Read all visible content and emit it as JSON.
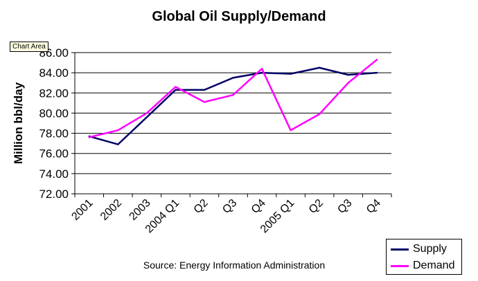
{
  "chart_data": {
    "type": "line",
    "title": "Global Oil Supply/Demand",
    "ylabel": "Million bbl/day",
    "xlabel": "",
    "categories": [
      "2001",
      "2002",
      "2003",
      "2004 Q1",
      "Q2",
      "Q3",
      "Q4",
      "2005 Q1",
      "Q2",
      "Q3",
      "Q4"
    ],
    "ylim": [
      72,
      86
    ],
    "ytick_step": 2,
    "ytick_labels": [
      "72.00",
      "74.00",
      "76.00",
      "78.00",
      "80.00",
      "82.00",
      "84.00",
      "86.00"
    ],
    "grid": true,
    "legend_position": "bottom-right",
    "series": [
      {
        "name": "Supply",
        "color": "#000066",
        "values": [
          77.7,
          76.9,
          79.6,
          82.3,
          82.3,
          83.5,
          84.0,
          83.9,
          84.5,
          83.8,
          84.0
        ]
      },
      {
        "name": "Demand",
        "color": "#ff00ff",
        "values": [
          77.6,
          78.3,
          80.0,
          82.6,
          81.1,
          81.8,
          84.4,
          78.3,
          79.9,
          83.0,
          85.3
        ]
      }
    ],
    "source_note": "Source: Energy Information Administration"
  },
  "tooltip": "Chart Area"
}
